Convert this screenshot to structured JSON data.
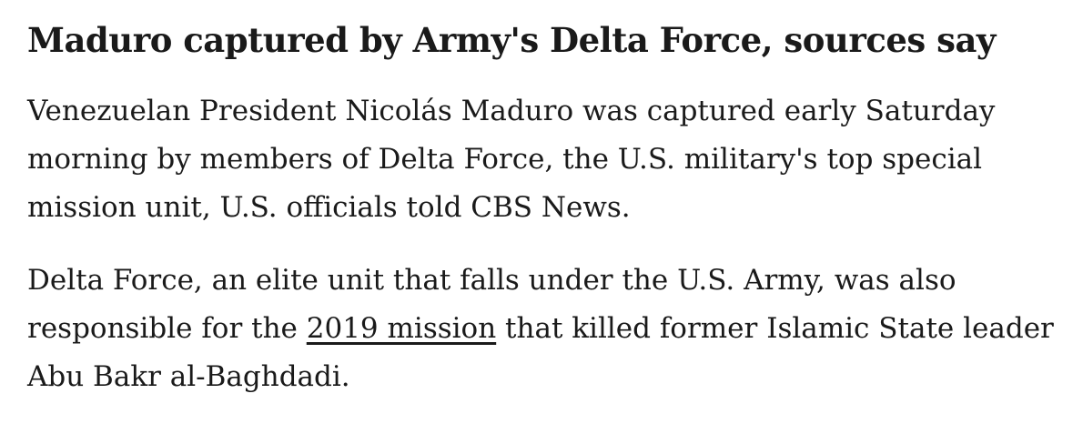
{
  "article": {
    "headline": "Maduro captured by Army's Delta Force, sources say",
    "paragraph1": {
      "line1": "Venezuelan President Nicolás Maduro was captured early Saturday",
      "line2": "morning by members of Delta Force, the U.S. military's top special",
      "line3": "mission unit, U.S. officials told CBS News."
    },
    "paragraph2": {
      "line1": "Delta Force, an elite unit that falls under the U.S. Army, was also",
      "line2_before_link": "responsible for the ",
      "link_text": "2019 mission",
      "line2_after_link": " that killed former Islamic State leader",
      "line3": "Abu Bakr al-Baghdadi."
    },
    "colors": {
      "text": "#1a1a1a",
      "background": "#ffffff",
      "link_underline": "#1a1a1a"
    }
  }
}
